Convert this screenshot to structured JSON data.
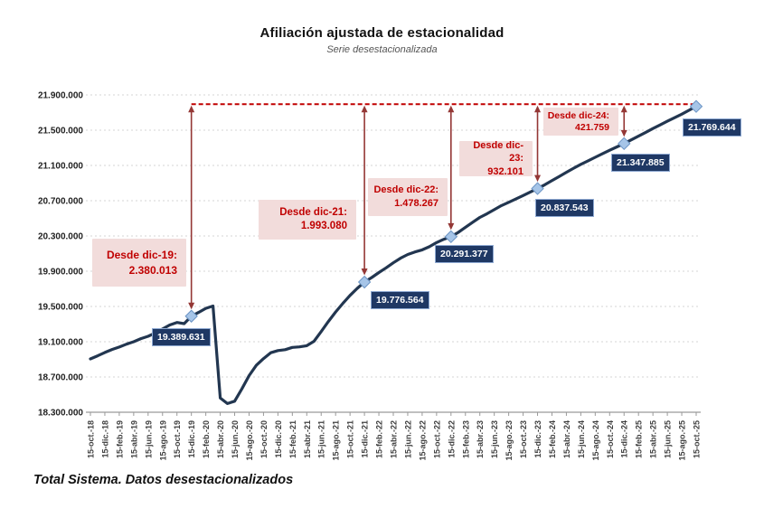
{
  "chart_data": {
    "type": "line",
    "title": "Afiliación ajustada de estacionalidad",
    "subtitle": "Serie desestacionalizada",
    "footer_note": "Total Sistema. Datos desestacionalizados",
    "grid": true,
    "legend": false,
    "ylim": [
      18300000,
      21900000
    ],
    "y_tick_labels": [
      "21.900.000",
      "21.500.000",
      "21.100.000",
      "20.700.000",
      "20.300.000",
      "19.900.000",
      "19.500.000",
      "19.100.000",
      "18.700.000",
      "18.300.000"
    ],
    "x_tick_labels": [
      "15-oct.-18",
      "15-dic.-18",
      "15-feb.-19",
      "15-abr.-19",
      "15-jun.-19",
      "15-ago.-19",
      "15-oct.-19",
      "15-dic.-19",
      "15-feb.-20",
      "15-abr.-20",
      "15-jun.-20",
      "15-ago.-20",
      "15-oct.-20",
      "15-dic.-20",
      "15-feb.-21",
      "15-abr.-21",
      "15-jun.-21",
      "15-ago.-21",
      "15-oct.-21",
      "15-dic.-21",
      "15-feb.-22",
      "15-abr.-22",
      "15-jun.-22",
      "15-ago.-22",
      "15-oct.-22",
      "15-dic.-22",
      "15-feb.-23",
      "15-abr.-23",
      "15-jun.-23",
      "15-ago.-23",
      "15-oct.-23",
      "15-dic.-23",
      "15-feb.-24",
      "15-abr.-24",
      "15-jun.-24",
      "15-ago.-24",
      "15-oct.-24",
      "15-dic.-24",
      "15-feb.-25",
      "15-abr.-25",
      "15-jun.-25",
      "15-ago.-25",
      "15-oct.-25"
    ],
    "x_start": "oct-18",
    "x_end": "oct-25",
    "frequency": "monthly",
    "values": [
      18905000,
      18940000,
      18978000,
      19012000,
      19040000,
      19072000,
      19100000,
      19135000,
      19162000,
      19200000,
      19245000,
      19290000,
      19318000,
      19305000,
      19389631,
      19432000,
      19478000,
      19505000,
      18462000,
      18398000,
      18425000,
      18565000,
      18715000,
      18832000,
      18908000,
      18975000,
      19000000,
      19010000,
      19035000,
      19042000,
      19055000,
      19105000,
      19215000,
      19330000,
      19437000,
      19535000,
      19625000,
      19705000,
      19776564,
      19828000,
      19885000,
      19938000,
      19995000,
      20048000,
      20090000,
      20118000,
      20142000,
      20178000,
      20225000,
      20262000,
      20291377,
      20340000,
      20398000,
      20455000,
      20510000,
      20552000,
      20598000,
      20645000,
      20682000,
      20720000,
      20758000,
      20798000,
      20837543,
      20880000,
      20928000,
      20975000,
      21022000,
      21068000,
      21112000,
      21152000,
      21192000,
      21232000,
      21272000,
      21310000,
      21347885,
      21390000,
      21432000,
      21475000,
      21518000,
      21560000,
      21602000,
      21642000,
      21682000,
      21726000,
      21769644
    ],
    "highlight_points": [
      {
        "month": "dic-19",
        "index": 14,
        "value": 19389631,
        "label": "19.389.631"
      },
      {
        "month": "dic-21",
        "index": 38,
        "value": 19776564,
        "label": "19.776.564"
      },
      {
        "month": "dic-22",
        "index": 50,
        "value": 20291377,
        "label": "20.291.377"
      },
      {
        "month": "dic-23",
        "index": 62,
        "value": 20837543,
        "label": "20.837.543"
      },
      {
        "month": "dic-24",
        "index": 74,
        "value": 21347885,
        "label": "21.347.885"
      },
      {
        "month": "oct-25",
        "index": 84,
        "value": 21769644,
        "label": "21.769.644"
      }
    ],
    "annotations": [
      {
        "label": "Desde dic-19:",
        "value": "2.380.013",
        "target_index": 14
      },
      {
        "label": "Desde dic-21:",
        "value": "1.993.080",
        "target_index": 38
      },
      {
        "label": "Desde dic-22:",
        "value": "1.478.267",
        "target_index": 50
      },
      {
        "label": "Desde dic-23:",
        "value": "932.101",
        "target_index": 62
      },
      {
        "label": "Desde dic-24:",
        "value": "421.759",
        "target_index": 74
      }
    ],
    "colors": {
      "line": "#223650",
      "marker": "#a6c5e8",
      "marker_border": "#6b94c4",
      "arrow": "#943735",
      "dashed_line": "#c00000",
      "annotation_bg": "#f2dcdb",
      "annotation_text": "#c00000",
      "label_bg": "#1f3864",
      "label_text": "#ffffff",
      "gridline": "#d6d6d6",
      "axis": "#9a9a9a"
    }
  }
}
